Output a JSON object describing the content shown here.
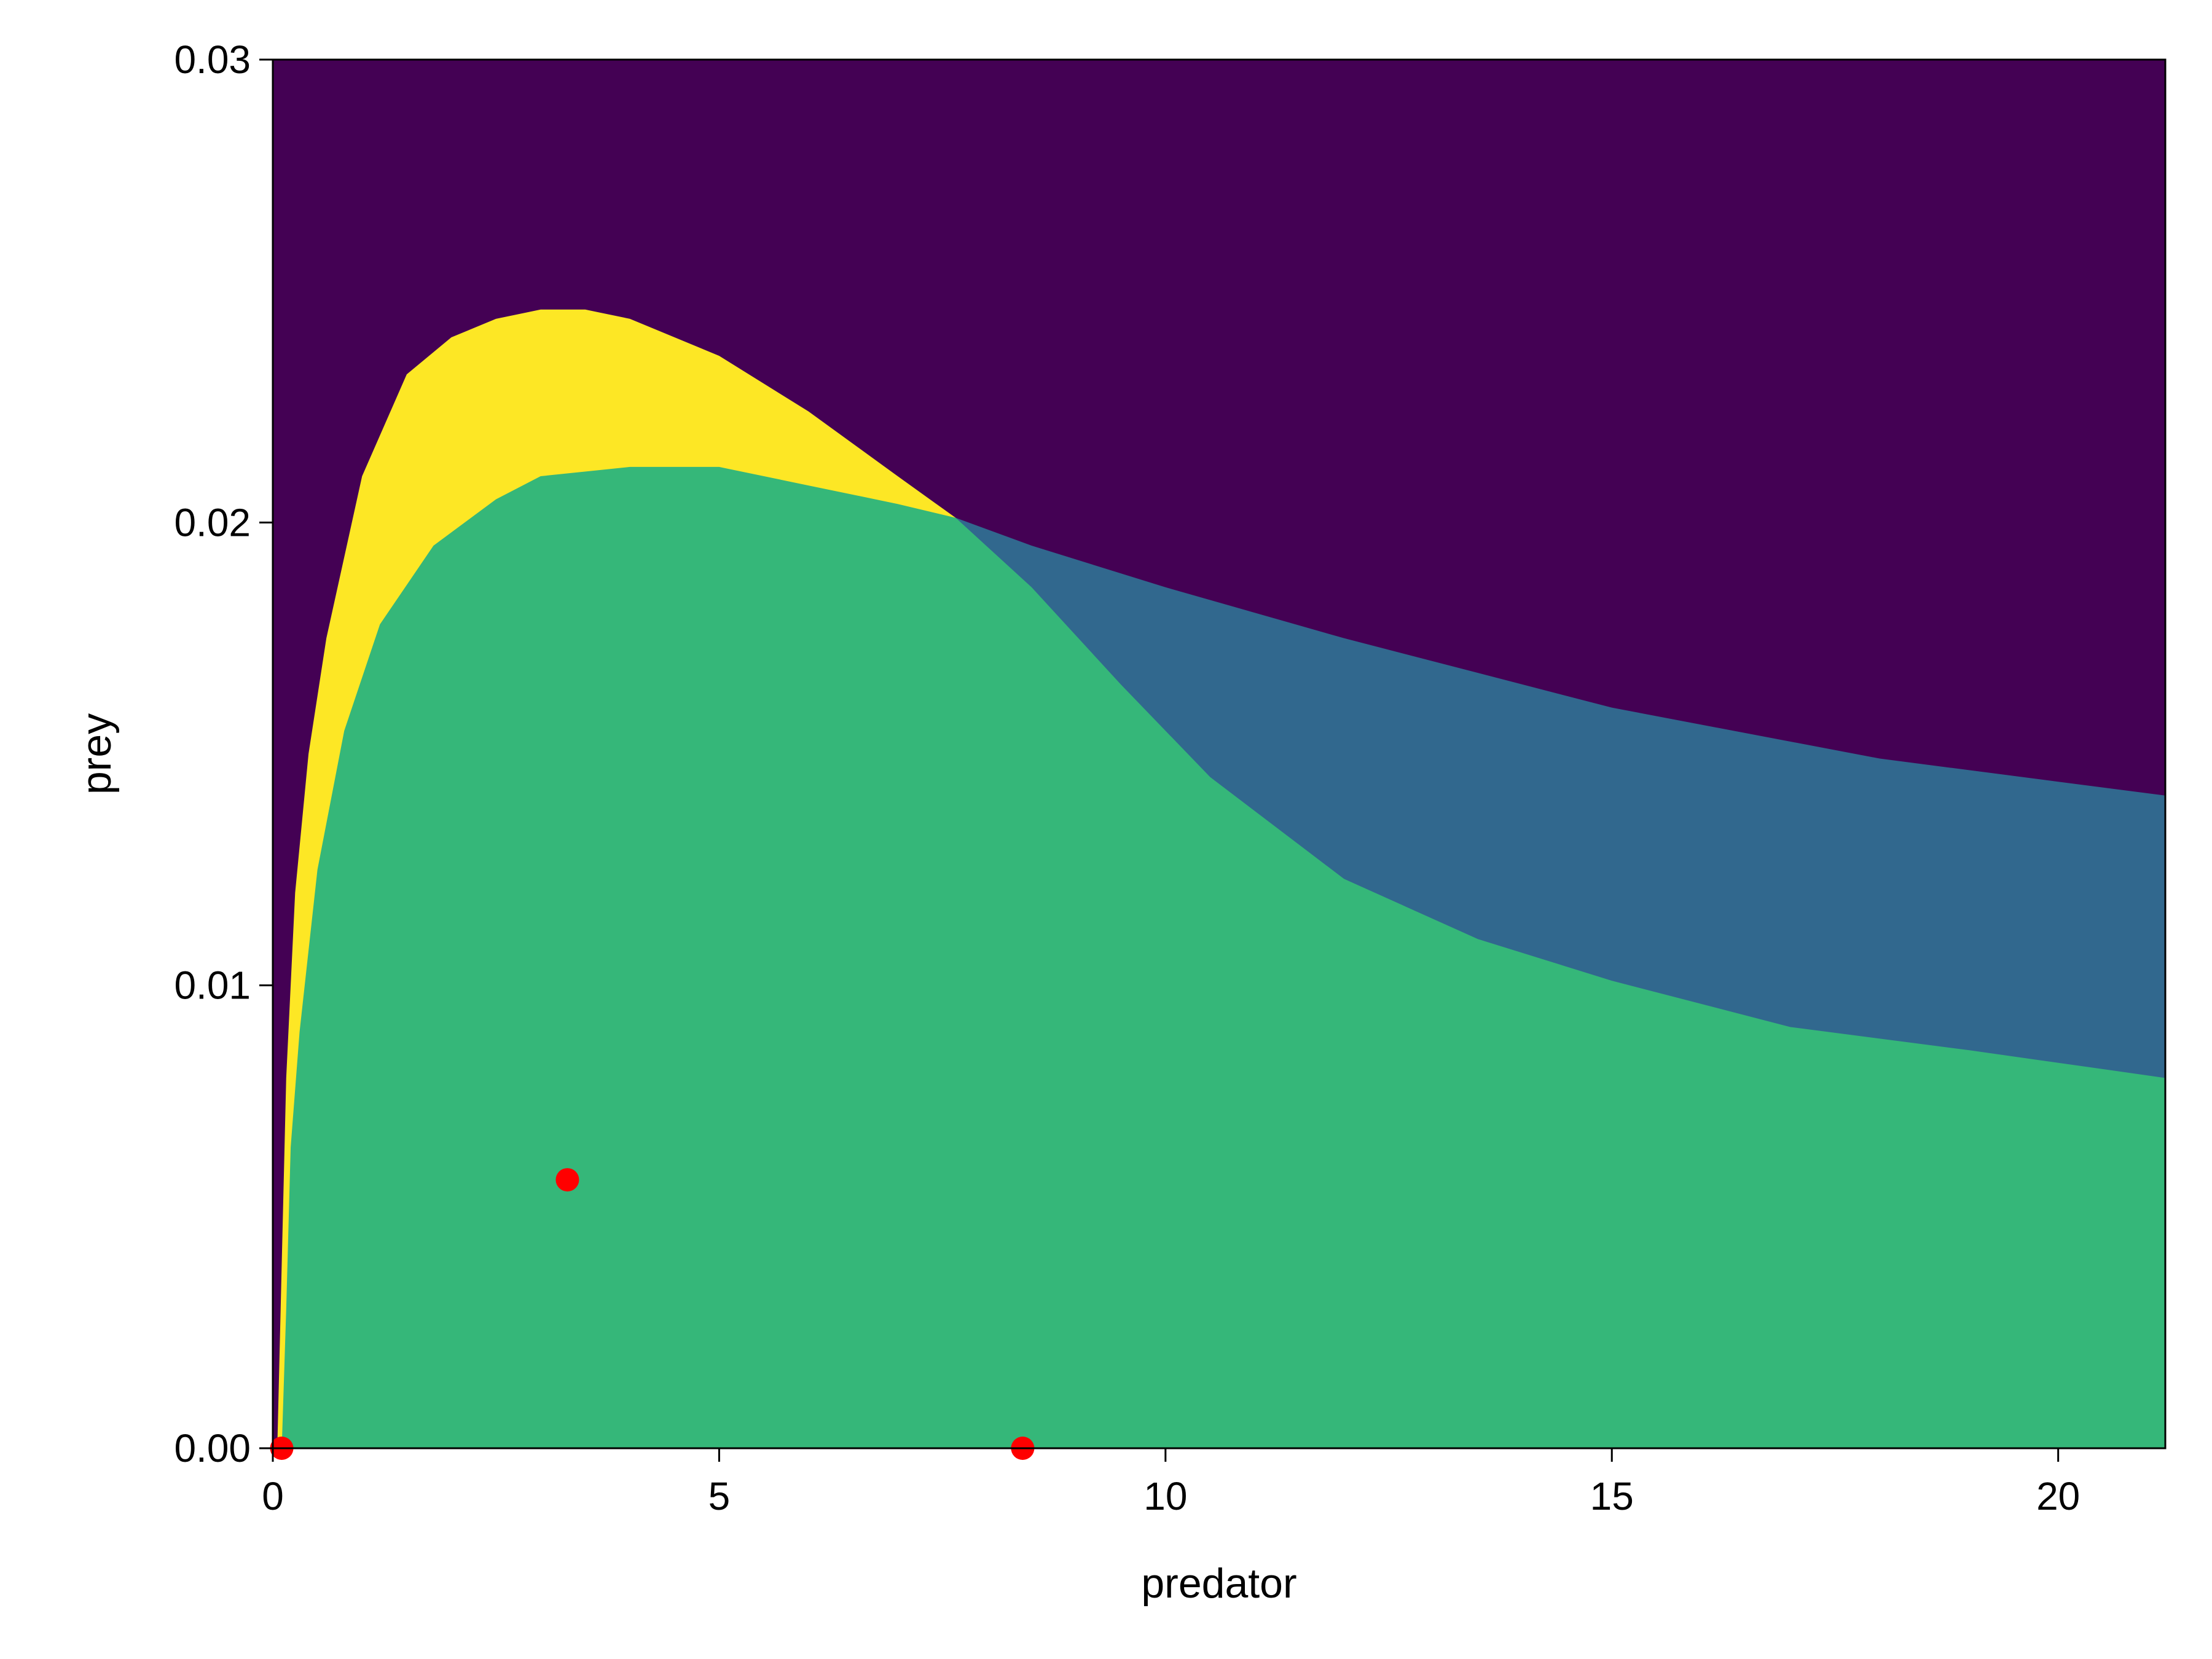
{
  "chart_data": {
    "type": "heatmap",
    "title": "",
    "xlabel": "predator",
    "ylabel": "prey",
    "xlim": [
      0,
      21.2
    ],
    "ylim": [
      0,
      0.03
    ],
    "xticks": [
      0,
      5,
      10,
      15,
      20
    ],
    "xtick_labels": [
      "0",
      "5",
      "10",
      "15",
      "20"
    ],
    "yticks": [
      0,
      0.01,
      0.02,
      0.03
    ],
    "ytick_labels": [
      "0.00",
      "0.01",
      "0.02",
      "0.03"
    ],
    "grid": false,
    "legend": "none",
    "colors": {
      "background": "#440154",
      "yellow": "#fde725",
      "green": "#35b779",
      "blue": "#31688e",
      "points": "#ff0000"
    },
    "regions": [
      {
        "color": "#fde725",
        "boundary": [
          [
            0.05,
            0
          ],
          [
            0.15,
            0.008
          ],
          [
            0.25,
            0.012
          ],
          [
            0.4,
            0.015
          ],
          [
            0.6,
            0.0175
          ],
          [
            1.0,
            0.021
          ],
          [
            1.5,
            0.0232
          ],
          [
            2.0,
            0.024
          ],
          [
            2.5,
            0.0244
          ],
          [
            3.0,
            0.0246
          ],
          [
            3.5,
            0.0246
          ],
          [
            4.0,
            0.0244
          ],
          [
            5.0,
            0.0236
          ],
          [
            6.0,
            0.0224
          ],
          [
            7.0,
            0.021
          ],
          [
            7.65,
            0.0201
          ]
        ]
      },
      {
        "color": "#31688e",
        "boundary": [
          [
            7.65,
            0.0201
          ],
          [
            8.5,
            0.0195
          ],
          [
            10.0,
            0.0186
          ],
          [
            12.0,
            0.0175
          ],
          [
            15.0,
            0.016
          ],
          [
            18.0,
            0.0149
          ],
          [
            20.0,
            0.0144
          ],
          [
            21.2,
            0.0141
          ]
        ]
      },
      {
        "color": "#35b779",
        "boundary": [
          [
            0.1,
            0
          ],
          [
            0.15,
            0.003
          ],
          [
            0.2,
            0.0065
          ],
          [
            0.3,
            0.009
          ],
          [
            0.5,
            0.0125
          ],
          [
            0.8,
            0.0155
          ],
          [
            1.2,
            0.0178
          ],
          [
            1.8,
            0.0195
          ],
          [
            2.5,
            0.0205
          ],
          [
            3.0,
            0.021
          ],
          [
            4.0,
            0.0212
          ],
          [
            5.0,
            0.0212
          ],
          [
            6.0,
            0.0208
          ],
          [
            7.0,
            0.0204
          ],
          [
            7.65,
            0.0201
          ],
          [
            8.5,
            0.0186
          ],
          [
            9.5,
            0.0165
          ],
          [
            10.5,
            0.0145
          ],
          [
            12.0,
            0.0123
          ],
          [
            13.5,
            0.011
          ],
          [
            15.0,
            0.0101
          ],
          [
            17.0,
            0.0091
          ],
          [
            19.0,
            0.0086
          ],
          [
            21.2,
            0.008
          ]
        ]
      }
    ],
    "points": [
      {
        "x": 0.1,
        "y": 0.0
      },
      {
        "x": 3.3,
        "y": 0.0058
      },
      {
        "x": 8.4,
        "y": 0.0
      }
    ]
  }
}
